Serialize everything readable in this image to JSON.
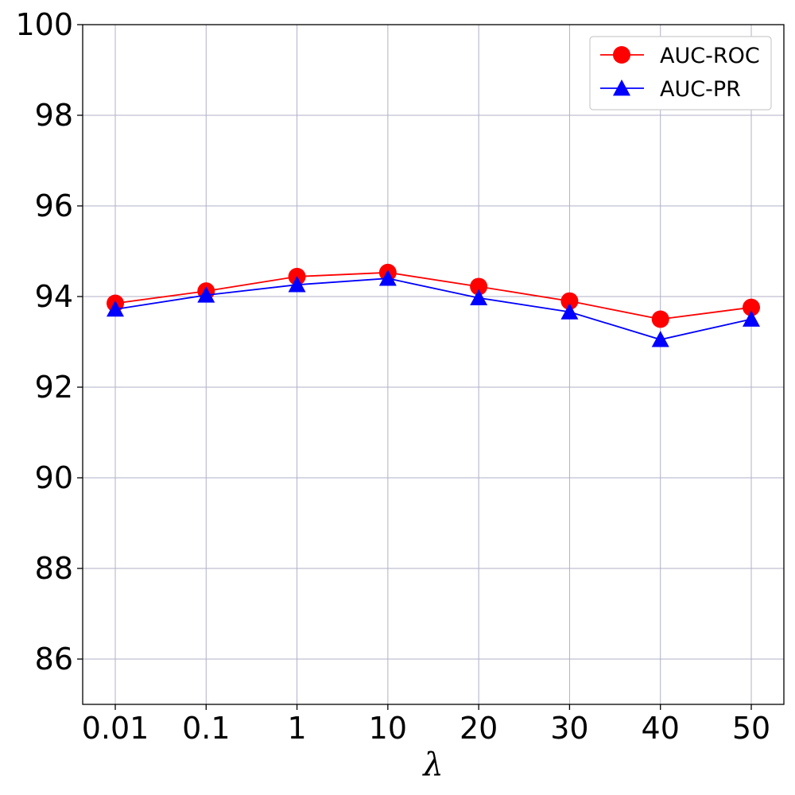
{
  "chart_data": {
    "type": "line",
    "title": "",
    "xlabel": "λ",
    "ylabel": "",
    "categories": [
      "0.01",
      "0.1",
      "1",
      "10",
      "20",
      "30",
      "40",
      "50"
    ],
    "ylim": [
      85,
      100
    ],
    "yticks": [
      "86",
      "88",
      "90",
      "92",
      "94",
      "96",
      "98",
      "100"
    ],
    "grid": true,
    "legend_position": "top-right",
    "series": [
      {
        "name": "AUC-ROC",
        "color": "#ff0000",
        "marker": "circle",
        "values": [
          93.85,
          94.12,
          94.44,
          94.53,
          94.22,
          93.9,
          93.5,
          93.76
        ]
      },
      {
        "name": "AUC-PR",
        "color": "#0000ff",
        "marker": "triangle",
        "values": [
          93.72,
          94.03,
          94.26,
          94.4,
          93.97,
          93.66,
          93.05,
          93.5
        ]
      }
    ]
  }
}
